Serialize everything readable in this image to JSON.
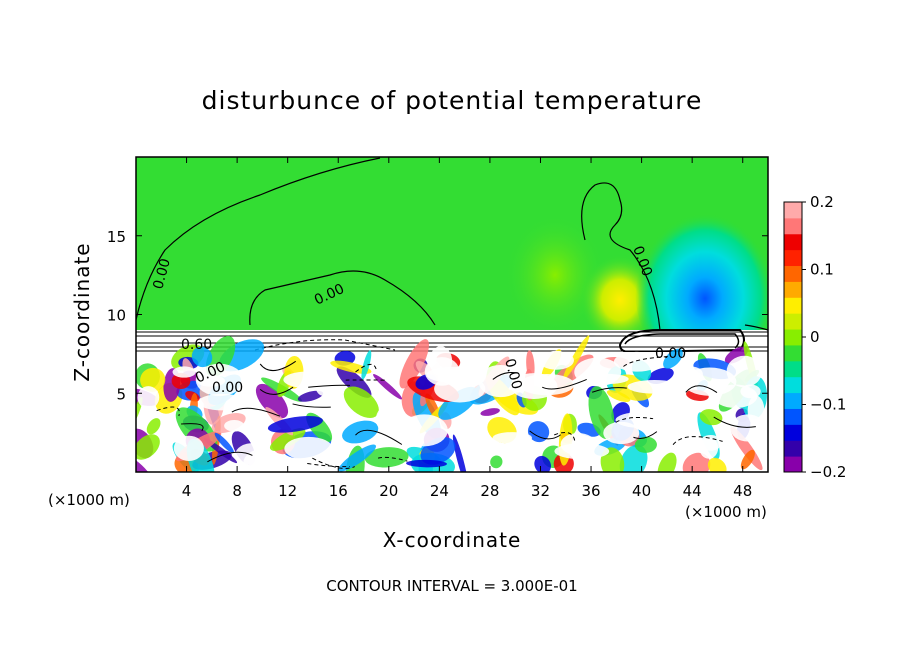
{
  "title": "disturbunce of potential temperature",
  "contour_interval_text": "CONTOUR INTERVAL = 3.000E-01",
  "x_unit_left": "(×1000 m)",
  "x_unit_right": "(×1000 m)",
  "colors": {
    "background_field": "#33dd33",
    "colorbar": [
      "#8800aa",
      "#3300aa",
      "#0000dd",
      "#0055ff",
      "#00aaff",
      "#00dddd",
      "#00dd88",
      "#33dd33",
      "#88ee00",
      "#ccee00",
      "#ffee00",
      "#ffaa00",
      "#ff6600",
      "#ff2200",
      "#ee0000",
      "#ff7777",
      "#ffaaaa"
    ]
  },
  "contour_labels": [
    "0.60",
    "0.00",
    "0.00",
    "0.00",
    "0.00",
    "0.00",
    "0.00",
    "0.00"
  ],
  "chart_data": {
    "type": "heatmap",
    "title": "disturbunce of potential temperature",
    "xlabel": "X-coordinate",
    "ylabel": "Z-coordinate",
    "x_unit": "(×1000 m)",
    "xlim": [
      0,
      50
    ],
    "ylim": [
      0,
      20
    ],
    "xticks": [
      4,
      8,
      12,
      16,
      20,
      24,
      28,
      32,
      36,
      40,
      44,
      48
    ],
    "yticks": [
      5,
      10,
      15
    ],
    "colorbar": {
      "range": [
        -0.2,
        0.2
      ],
      "ticks": [
        0.2,
        0.1,
        0,
        -0.1,
        -0.2
      ],
      "tick_labels": [
        "0.2",
        "0.1",
        "0",
        "−0.1",
        "−0.2"
      ]
    },
    "features": {
      "inversion_layer_z": [
        8.2,
        9.0
      ],
      "upper_positive_anomaly": {
        "x": 38,
        "z": 10.5
      },
      "upper_negative_anomaly": {
        "x": 44,
        "z": 11
      },
      "turbulent_boundary_layer_top_z": 8
    },
    "contour_interval": 0.3
  }
}
